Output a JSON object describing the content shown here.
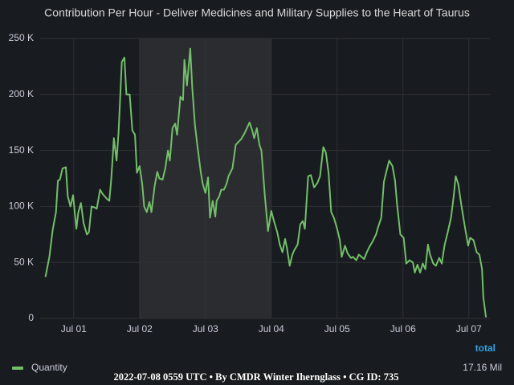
{
  "chart_data": {
    "type": "line",
    "title": "Contribution Per Hour - Deliver Medicines and Military Supplies to the Heart of Taurus",
    "x": [
      0.57,
      0.63,
      0.68,
      0.73,
      0.76,
      0.79,
      0.83,
      0.88,
      0.91,
      0.95,
      0.99,
      1.04,
      1.07,
      1.11,
      1.15,
      1.2,
      1.23,
      1.27,
      1.32,
      1.35,
      1.4,
      1.44,
      1.5,
      1.54,
      1.57,
      1.61,
      1.65,
      1.68,
      1.73,
      1.77,
      1.8,
      1.85,
      1.89,
      1.93,
      1.96,
      2.0,
      2.04,
      2.07,
      2.11,
      2.15,
      2.18,
      2.23,
      2.27,
      2.3,
      2.35,
      2.39,
      2.43,
      2.46,
      2.5,
      2.54,
      2.57,
      2.62,
      2.66,
      2.68,
      2.72,
      2.77,
      2.8,
      2.84,
      2.88,
      2.93,
      2.96,
      3.0,
      3.04,
      3.07,
      3.11,
      3.15,
      3.17,
      3.21,
      3.24,
      3.28,
      3.32,
      3.35,
      3.41,
      3.46,
      3.54,
      3.59,
      3.63,
      3.67,
      3.71,
      3.74,
      3.78,
      3.82,
      3.85,
      3.9,
      3.95,
      4.0,
      4.04,
      4.09,
      4.13,
      4.17,
      4.21,
      4.24,
      4.28,
      4.32,
      4.35,
      4.4,
      4.44,
      4.48,
      4.51,
      4.56,
      4.6,
      4.65,
      4.7,
      4.74,
      4.79,
      4.83,
      4.87,
      4.91,
      4.95,
      5.0,
      5.04,
      5.07,
      5.12,
      5.16,
      5.21,
      5.24,
      5.29,
      5.33,
      5.37,
      5.41,
      5.45,
      5.49,
      5.54,
      5.59,
      5.62,
      5.67,
      5.71,
      5.76,
      5.79,
      5.84,
      5.88,
      5.91,
      5.96,
      6.01,
      6.05,
      6.1,
      6.15,
      6.18,
      6.22,
      6.26,
      6.3,
      6.34,
      6.38,
      6.41,
      6.46,
      6.5,
      6.55,
      6.59,
      6.63,
      6.68,
      6.73,
      6.77,
      6.8,
      6.84,
      6.89,
      6.94,
      6.99,
      7.02,
      7.07,
      7.12,
      7.16,
      7.2,
      7.22,
      7.26
    ],
    "series": [
      {
        "name": "Quantity",
        "color": "#73bf69",
        "values": [
          37000,
          55000,
          79000,
          95000,
          123000,
          124000,
          134000,
          135000,
          109000,
          100000,
          110000,
          80000,
          95000,
          103000,
          85000,
          75000,
          77000,
          100000,
          99000,
          98000,
          115000,
          111000,
          107000,
          105000,
          125000,
          161000,
          141000,
          166000,
          229000,
          233000,
          200000,
          200000,
          168000,
          164000,
          130000,
          136000,
          120000,
          100000,
          95000,
          104000,
          95000,
          119000,
          131000,
          125000,
          124000,
          134000,
          150000,
          141000,
          170000,
          174000,
          164000,
          198000,
          195000,
          231000,
          208000,
          241000,
          206000,
          173000,
          153000,
          130000,
          120000,
          112000,
          126000,
          90000,
          105000,
          91000,
          105000,
          109000,
          115000,
          115000,
          120000,
          127000,
          134000,
          155000,
          160000,
          165000,
          170000,
          175000,
          168000,
          161000,
          170000,
          155000,
          150000,
          111000,
          78000,
          96000,
          87000,
          77000,
          66000,
          59000,
          71000,
          62000,
          47000,
          57000,
          61000,
          66000,
          84000,
          87000,
          80000,
          127000,
          128000,
          117000,
          121000,
          127000,
          153000,
          148000,
          130000,
          95000,
          90000,
          80000,
          70000,
          55000,
          65000,
          58000,
          54000,
          55000,
          52000,
          57000,
          55000,
          53000,
          59000,
          64000,
          69000,
          75000,
          81000,
          90000,
          122000,
          134000,
          141000,
          136000,
          123000,
          102000,
          75000,
          72000,
          49000,
          52000,
          50000,
          41000,
          48000,
          41000,
          49000,
          44000,
          66000,
          57000,
          49000,
          47000,
          54000,
          49000,
          65000,
          77000,
          90000,
          109000,
          127000,
          120000,
          100000,
          82000,
          65000,
          72000,
          70000,
          59000,
          57000,
          44000,
          19000,
          1000
        ]
      }
    ],
    "xlim": [
      0.49,
      7.32
    ],
    "xticks": [
      {
        "value": 1,
        "label": "Jul 01"
      },
      {
        "value": 2,
        "label": "Jul 02"
      },
      {
        "value": 3,
        "label": "Jul 03"
      },
      {
        "value": 4,
        "label": "Jul 04"
      },
      {
        "value": 5,
        "label": "Jul 05"
      },
      {
        "value": 6,
        "label": "Jul 06"
      },
      {
        "value": 7,
        "label": "Jul 07"
      }
    ],
    "ylim": [
      0,
      250000
    ],
    "yticks": [
      0,
      {
        "value": 50000,
        "label": "50 K"
      },
      {
        "value": 100000,
        "label": "100 K"
      },
      {
        "value": 150000,
        "label": "150 K"
      },
      {
        "value": 200000,
        "label": "200 K"
      },
      {
        "value": 250000,
        "label": "250 K"
      }
    ],
    "grid": true,
    "highlight_range": [
      2,
      4
    ],
    "legend": {
      "header": "total",
      "values": [
        "17.16 Mil"
      ]
    },
    "footer": "2022-07-08 0559 UTC • By CMDR Winter Ihernglass • CG ID: 735"
  }
}
